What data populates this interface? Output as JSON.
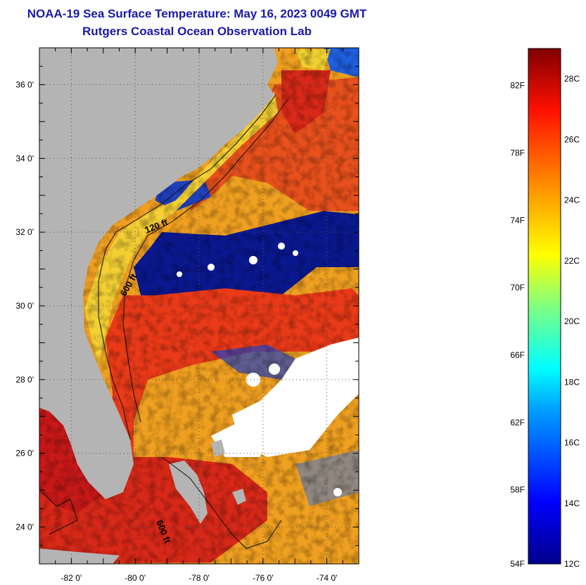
{
  "header": {
    "title": "NOAA-19 Sea Surface Temperature:  May 16, 2023 0049 GMT",
    "subtitle": "Rutgers Coastal Ocean Observation Lab"
  },
  "map": {
    "lon_range": [
      -83,
      -73
    ],
    "lat_range": [
      23,
      37
    ],
    "lat_ticks": [
      {
        "value": 36,
        "label": "36 0'"
      },
      {
        "value": 34,
        "label": "34 0'"
      },
      {
        "value": 32,
        "label": "32 0'"
      },
      {
        "value": 30,
        "label": "30 0'"
      },
      {
        "value": 28,
        "label": "28 0'"
      },
      {
        "value": 26,
        "label": "26 0'"
      },
      {
        "value": 24,
        "label": "24 0'"
      }
    ],
    "lon_ticks": [
      {
        "value": -82,
        "label": "-82 0'"
      },
      {
        "value": -80,
        "label": "-80 0'"
      },
      {
        "value": -78,
        "label": "-78 0'"
      },
      {
        "value": -76,
        "label": "-76 0'"
      },
      {
        "value": -74,
        "label": "-74 0'"
      }
    ],
    "contour_labels": [
      "120 ft",
      "600 ft",
      "600 ft"
    ],
    "colors": {
      "land": "#b4b4b4",
      "cloud": "#ffffff",
      "grid": "#555555"
    }
  },
  "colorbar": {
    "min_c": 12,
    "max_c": 29,
    "fahrenheit_labels": [
      "82F",
      "78F",
      "74F",
      "70F",
      "66F",
      "62F",
      "58F",
      "54F"
    ],
    "celsius_labels": [
      "28C",
      "26C",
      "24C",
      "22C",
      "20C",
      "18C",
      "16C",
      "14C",
      "12C"
    ]
  }
}
